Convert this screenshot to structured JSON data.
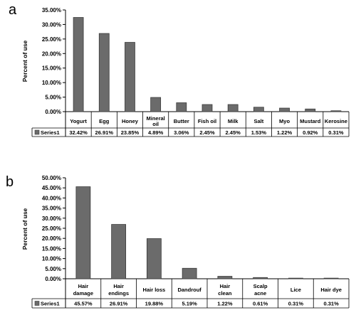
{
  "chart_data": [
    {
      "panel_label": "a",
      "type": "bar",
      "ylabel": "Percent of use",
      "ylim": [
        0,
        35
      ],
      "yticks": [
        "0.00%",
        "5.00%",
        "10.00%",
        "15.00%",
        "20.00%",
        "25.00%",
        "30.00%",
        "35.00%"
      ],
      "categories": [
        [
          "Yogurt"
        ],
        [
          "Egg"
        ],
        [
          "Honey"
        ],
        [
          "Mineral",
          "oil"
        ],
        [
          "Butter"
        ],
        [
          "Fish oil"
        ],
        [
          "Milk"
        ],
        [
          "Salt"
        ],
        [
          "Myo"
        ],
        [
          "Mustard"
        ],
        [
          "Kerosine"
        ]
      ],
      "series": [
        {
          "name": "Series1",
          "values": [
            32.42,
            26.91,
            23.85,
            4.89,
            3.06,
            2.45,
            2.45,
            1.53,
            1.22,
            0.92,
            0.31
          ],
          "labels": [
            "32.42%",
            "26.91%",
            "23.85%",
            "4.89%",
            "3.06%",
            "2.45%",
            "2.45%",
            "1.53%",
            "1.22%",
            "0.92%",
            "0.31%"
          ]
        }
      ],
      "legend": "data table",
      "grid": false
    },
    {
      "panel_label": "b",
      "type": "bar",
      "ylabel": "Percent of use",
      "ylim": [
        0,
        50
      ],
      "yticks": [
        "0.00%",
        "5.00%",
        "10.00%",
        "15.00%",
        "20.00%",
        "25.00%",
        "30.00%",
        "35.00%",
        "40.00%",
        "45.00%",
        "50.00%"
      ],
      "categories": [
        [
          "Hair",
          "damage"
        ],
        [
          "Hair",
          "endings"
        ],
        [
          "Hair loss"
        ],
        [
          "Dandrouf"
        ],
        [
          "Hair",
          "clean"
        ],
        [
          "Scalp",
          "acne"
        ],
        [
          "Lice"
        ],
        [
          "Hair dye"
        ]
      ],
      "series": [
        {
          "name": "Series1",
          "values": [
            45.57,
            26.91,
            19.88,
            5.19,
            1.22,
            0.61,
            0.31,
            0.31
          ],
          "labels": [
            "45.57%",
            "26.91%",
            "19.88%",
            "5.19%",
            "1.22%",
            "0.61%",
            "0.31%",
            "0.31%"
          ]
        }
      ],
      "legend": "data table",
      "grid": false
    }
  ],
  "style": {
    "bar_fill": "#6b6b6b",
    "bar_stroke": "#3a3a3a",
    "axis": "#000000"
  }
}
